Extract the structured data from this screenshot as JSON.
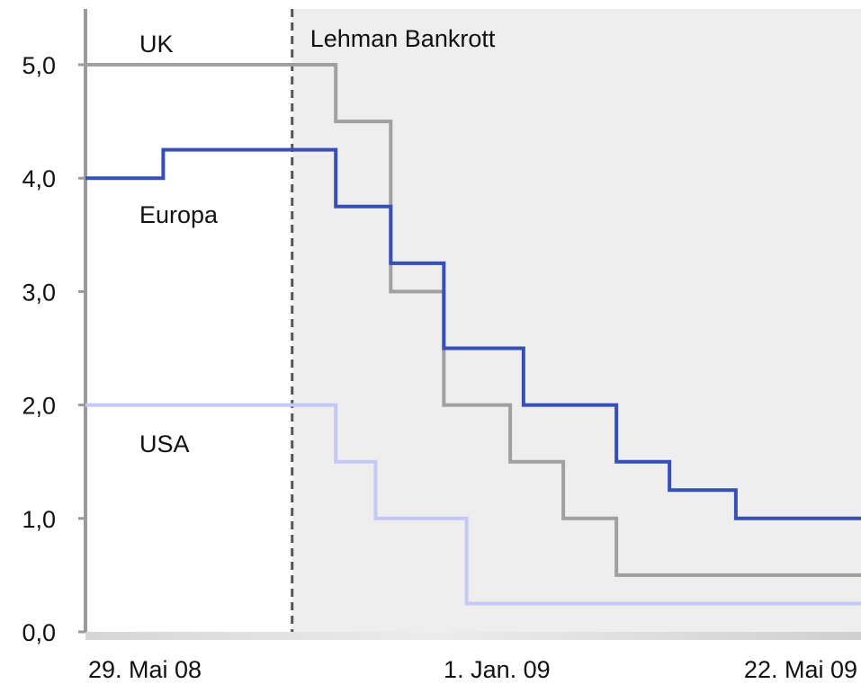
{
  "chart_data": {
    "type": "line",
    "title": "",
    "xlabel": "",
    "ylabel": "",
    "step": true,
    "x_range": [
      "2008-05-29",
      "2009-07-12"
    ],
    "ylim": [
      0,
      5.4
    ],
    "y_ticks": [
      0,
      1,
      2,
      3,
      4,
      5
    ],
    "y_tick_labels": [
      "0,0",
      "1,0",
      "2,0",
      "3,0",
      "4,0",
      "5,0"
    ],
    "x_ticks": [
      {
        "date": "2008-05-29",
        "label": "29. Mai 08"
      },
      {
        "date": "2009-01-01",
        "label": "1. Jan. 09"
      },
      {
        "date": "2009-05-22",
        "label": "22. Mai 09"
      }
    ],
    "annotation": {
      "label": "Lehman Bankrott",
      "date": "2008-09-15",
      "style": "dashed",
      "shade_after": true,
      "shade_color": "#eeeeee"
    },
    "x_axis_band_color": "#e0e0e0",
    "grid": false,
    "legend": "inline",
    "series": [
      {
        "name": "UK",
        "color": "#a0a0a0",
        "points": [
          [
            "2008-05-29",
            5.0
          ],
          [
            "2008-10-08",
            4.5
          ],
          [
            "2008-11-06",
            3.0
          ],
          [
            "2008-12-04",
            2.0
          ],
          [
            "2009-01-08",
            1.5
          ],
          [
            "2009-02-05",
            1.0
          ],
          [
            "2009-03-05",
            0.5
          ],
          [
            "2009-07-12",
            0.5
          ]
        ]
      },
      {
        "name": "Europa",
        "color": "#3650b8",
        "points": [
          [
            "2008-05-29",
            4.0
          ],
          [
            "2008-07-09",
            4.25
          ],
          [
            "2008-10-08",
            3.75
          ],
          [
            "2008-11-06",
            3.25
          ],
          [
            "2008-12-04",
            2.5
          ],
          [
            "2009-01-15",
            2.0
          ],
          [
            "2009-03-05",
            1.5
          ],
          [
            "2009-04-02",
            1.25
          ],
          [
            "2009-05-07",
            1.0
          ],
          [
            "2009-07-12",
            1.0
          ]
        ]
      },
      {
        "name": "USA",
        "color": "#c4c8f4",
        "points": [
          [
            "2008-05-29",
            2.0
          ],
          [
            "2008-10-08",
            1.5
          ],
          [
            "2008-10-29",
            1.0
          ],
          [
            "2008-12-16",
            0.25
          ],
          [
            "2009-07-12",
            0.25
          ]
        ]
      }
    ]
  }
}
